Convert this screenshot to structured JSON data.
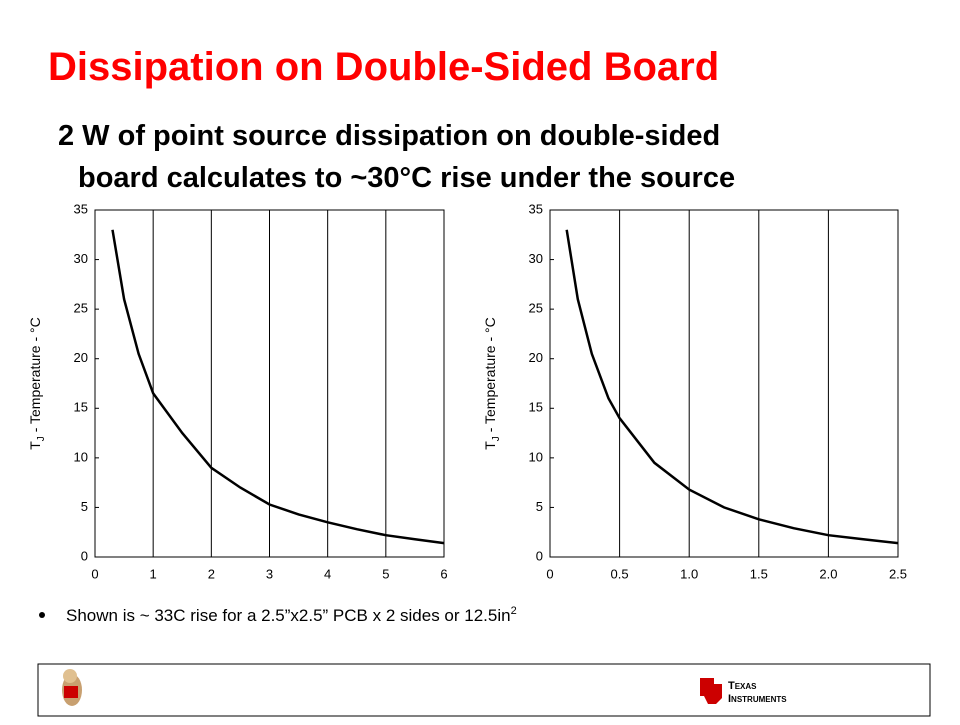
{
  "title": "Dissipation on Double-Sided Board",
  "subtitle_line1": "2 W of point source dissipation on double-sided",
  "subtitle_line2": "board calculates to ~30°C rise under the source",
  "bullet": "Shown is ~ 33C rise for a 2.5”x2.5” PCB x 2 sides or 12.5in",
  "bullet_superscript": "2",
  "footer": {
    "logo_word1": "Texas",
    "logo_word2": "Instruments"
  },
  "chart_data": [
    {
      "type": "line",
      "ylabel_symbol": "T",
      "ylabel_subscript": "J",
      "ylabel": " - Temperature - °C",
      "x": [
        0.3,
        0.5,
        0.75,
        1,
        1.5,
        2,
        2.5,
        3,
        3.5,
        4,
        4.5,
        5,
        5.5,
        6
      ],
      "values": [
        33,
        26,
        20.5,
        16.5,
        12.5,
        9,
        7,
        5.3,
        4.3,
        3.5,
        2.8,
        2.2,
        1.8,
        1.4
      ],
      "color": "#000000",
      "xlim": [
        0,
        6
      ],
      "xticks": [
        0,
        1,
        2,
        3,
        4,
        5,
        6
      ],
      "ylim": [
        0,
        35
      ],
      "yticks": [
        0,
        5,
        10,
        15,
        20,
        25,
        30,
        35
      ],
      "grid": "x"
    },
    {
      "type": "line",
      "ylabel_symbol": "T",
      "ylabel_subscript": "J",
      "ylabel": " - Temperature - °C",
      "x": [
        0.12,
        0.2,
        0.3,
        0.42,
        0.5,
        0.75,
        1,
        1.25,
        1.5,
        1.75,
        2,
        2.25,
        2.5
      ],
      "values": [
        33,
        26,
        20.5,
        16,
        14,
        9.5,
        6.8,
        5,
        3.8,
        2.9,
        2.2,
        1.8,
        1.4
      ],
      "color": "#000000",
      "xlim": [
        0,
        2.5
      ],
      "xticks": [
        0,
        0.5,
        {
          "value": 1,
          "label": "1.0"
        },
        1.5,
        {
          "value": 2,
          "label": "2.0"
        },
        2.5
      ],
      "ylim": [
        0,
        35
      ],
      "yticks": [
        0,
        5,
        10,
        15,
        20,
        25,
        30,
        35
      ],
      "grid": "x"
    }
  ]
}
